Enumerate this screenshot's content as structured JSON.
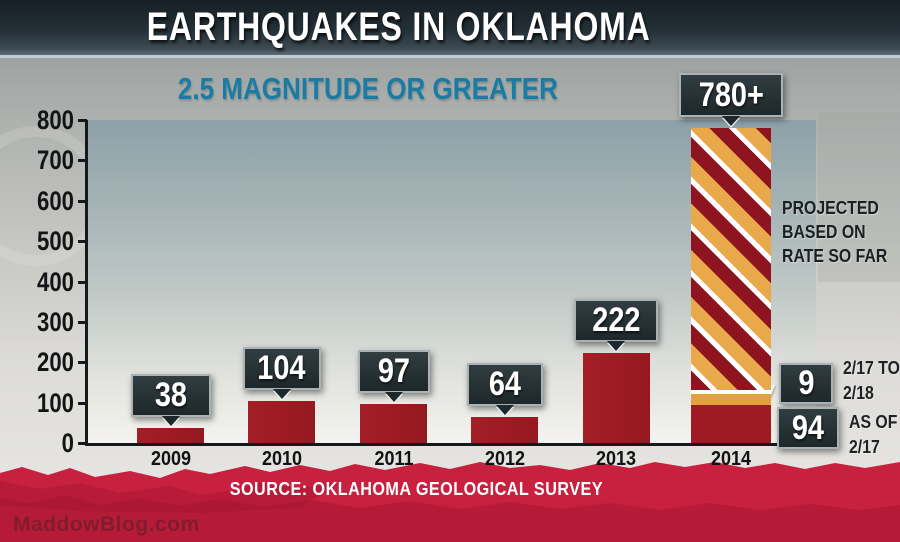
{
  "title": "EARTHQUAKES IN OKLAHOMA",
  "subtitle": "2.5 MAGNITUDE OR GREATER",
  "source": "SOURCE: OKLAHOMA GEOLOGICAL SURVEY",
  "watermark": "MaddowBlog.com",
  "chart_data": {
    "type": "bar",
    "title": "EARTHQUAKES IN OKLAHOMA",
    "subtitle": "2.5 MAGNITUDE OR GREATER",
    "categories": [
      "2009",
      "2010",
      "2011",
      "2012",
      "2013",
      "2014"
    ],
    "values": [
      38,
      104,
      97,
      64,
      222,
      780
    ],
    "bar_labels": [
      "38",
      "104",
      "97",
      "64",
      "222",
      "780+"
    ],
    "ylabel": "",
    "xlabel": "",
    "ylim": [
      0,
      800
    ],
    "yticks": [
      0,
      100,
      200,
      300,
      400,
      500,
      600,
      700,
      800
    ],
    "grid": false,
    "legend": "none",
    "projected_bar": {
      "category": "2014",
      "projected_total_label": "780+",
      "projected_total": 780,
      "solid_to_date": 94,
      "recent_increment": 9
    },
    "annotations": {
      "projected_line1": "PROJECTED",
      "projected_line2": "BASED ON",
      "projected_line3": "RATE SO FAR",
      "recent_value": "9",
      "recent_label_line1": "2/17 TO",
      "recent_label_line2": "2/18",
      "to_date_value": "94",
      "to_date_label_line1": "AS OF",
      "to_date_label_line2": "2/17"
    },
    "colors": {
      "bar_maroon": "#9e1b24",
      "stripe_maroon": "#8e1420",
      "stripe_gold": "#e9a94b",
      "stripe_white": "#ffffff",
      "accent_teal": "#1a7ca4",
      "label_box_dark": "#242e31",
      "band_red": "#c72340",
      "title_band_dark": "#243037"
    }
  }
}
